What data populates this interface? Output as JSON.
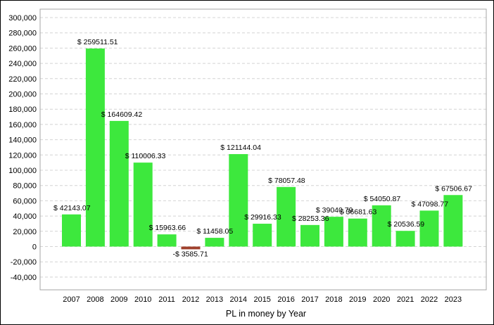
{
  "chart_data": {
    "type": "bar",
    "xlabel": "PL in money by Year",
    "ylabel": "",
    "ylim": [
      -50000,
      300000
    ],
    "yticks": [
      300000,
      280000,
      260000,
      240000,
      220000,
      200000,
      180000,
      160000,
      140000,
      120000,
      100000,
      80000,
      60000,
      40000,
      20000,
      0,
      -20000,
      -40000
    ],
    "ytick_labels": [
      "300,000",
      "280,000",
      "260,000",
      "240,000",
      "220,000",
      "200,000",
      "180,000",
      "160,000",
      "140,000",
      "120,000",
      "100,000",
      "80,000",
      "60,000",
      "40,000",
      "20,000",
      "0",
      "-20,000",
      "-40,000"
    ],
    "categories": [
      "2007",
      "2008",
      "2009",
      "2010",
      "2011",
      "2012",
      "2013",
      "2014",
      "2015",
      "2016",
      "2017",
      "2018",
      "2019",
      "2020",
      "2021",
      "2022",
      "2023"
    ],
    "values": [
      42143.07,
      259511.51,
      164609.42,
      110006.33,
      15963.66,
      -3585.71,
      11458.05,
      121144.04,
      29916.33,
      78057.48,
      28253.36,
      39040.79,
      36681.63,
      54050.87,
      20536.59,
      47098.77,
      67506.67
    ],
    "data_labels": [
      "$ 42143.07",
      "$ 259511.51",
      "$ 164609.42",
      "$ 110006.33",
      "$ 15963.66",
      "-$ 3585.71",
      "$ 11458.05",
      "$ 121144.04",
      "$ 29916.33",
      "$ 78057.48",
      "$ 28253.36",
      "$ 39040.79",
      "$ 36681.63",
      "$ 54050.87",
      "$ 20536.59",
      "$ 47098.77",
      "$ 67506.67"
    ],
    "grid": true,
    "colors": {
      "positive": "#3de83d",
      "negative": "#a0412d",
      "grid": "#d4d4d4",
      "axis": "#a6a6a6"
    }
  }
}
